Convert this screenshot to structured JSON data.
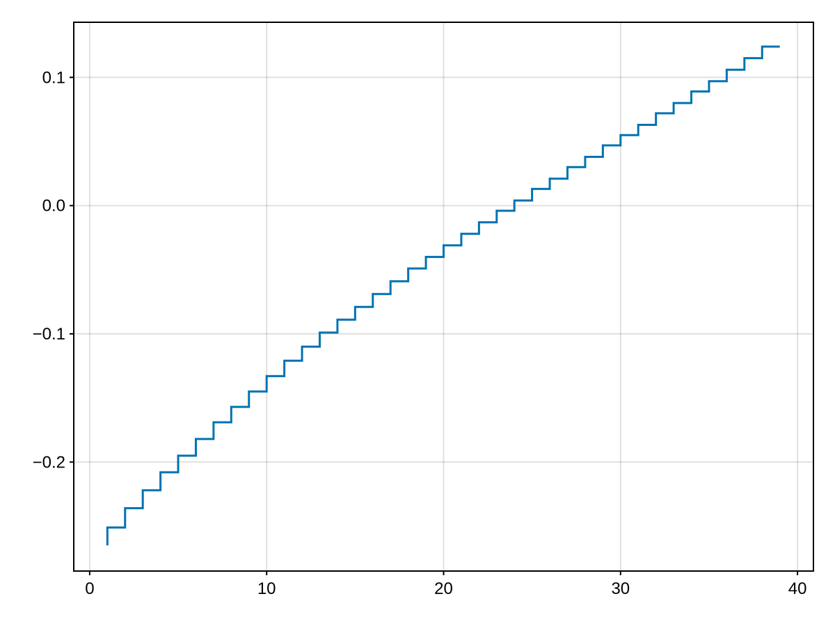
{
  "chart_data": {
    "type": "line",
    "step": "pre",
    "title": "",
    "xlabel": "",
    "ylabel": "",
    "xlim": [
      -0.9,
      40.9
    ],
    "ylim": [
      -0.285,
      0.143
    ],
    "xticks": [
      0,
      10,
      20,
      30,
      40
    ],
    "xtick_labels": [
      "0",
      "10",
      "20",
      "30",
      "40"
    ],
    "yticks": [
      0.1,
      0.0,
      -0.1,
      -0.2
    ],
    "ytick_labels": [
      "0.1",
      "0.0",
      "−0.1",
      "−0.2"
    ],
    "grid": true,
    "legend": "none",
    "color": "#0072B2",
    "series": [
      {
        "x": [
          1,
          2,
          3,
          4,
          5,
          6,
          7,
          8,
          9,
          10,
          11,
          12,
          13,
          14,
          15,
          16,
          17,
          18,
          19,
          20,
          21,
          22,
          23,
          24,
          25,
          26,
          27,
          28,
          29,
          30,
          31,
          32,
          33,
          34,
          35,
          36,
          37,
          38,
          39
        ],
        "y": [
          -0.265,
          -0.251,
          -0.236,
          -0.222,
          -0.208,
          -0.195,
          -0.182,
          -0.169,
          -0.157,
          -0.145,
          -0.133,
          -0.121,
          -0.11,
          -0.099,
          -0.089,
          -0.079,
          -0.069,
          -0.059,
          -0.049,
          -0.04,
          -0.031,
          -0.022,
          -0.013,
          -0.004,
          0.004,
          0.013,
          0.021,
          0.03,
          0.038,
          0.047,
          0.055,
          0.063,
          0.072,
          0.08,
          0.089,
          0.097,
          0.106,
          0.115,
          0.124
        ]
      }
    ]
  }
}
